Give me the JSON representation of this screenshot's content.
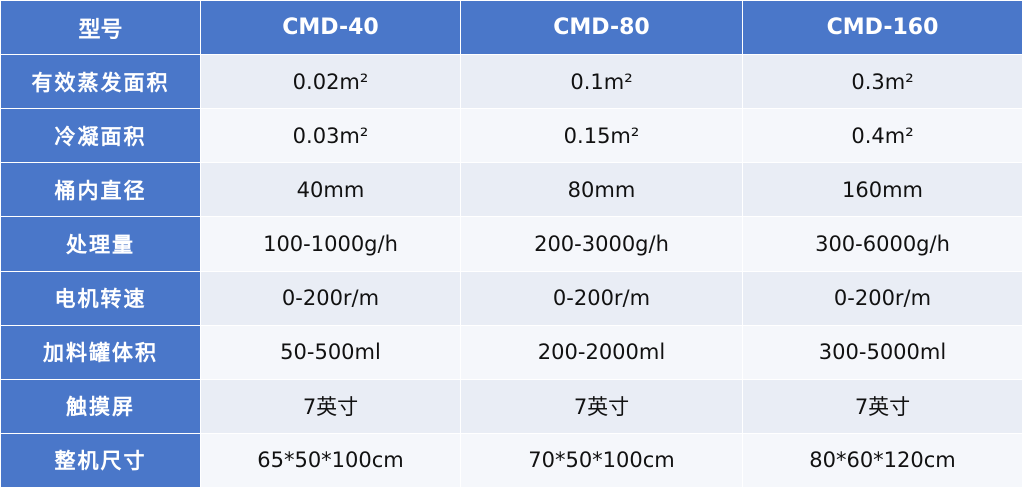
{
  "table": {
    "header": [
      "型号",
      "CMD-40",
      "CMD-80",
      "CMD-160"
    ],
    "rows": [
      [
        "有效蒸发面积",
        "0.02m²",
        "0.1m²",
        "0.3m²"
      ],
      [
        "冷凝面积",
        "0.03m²",
        "0.15m²",
        "0.4m²"
      ],
      [
        "桶内直径",
        "40mm",
        "80mm",
        "160mm"
      ],
      [
        "处理量",
        "100-1000g/h",
        "200-3000g/h",
        "300-6000g/h"
      ],
      [
        "电机转速",
        "0-200r/m",
        "0-200r/m",
        "0-200r/m"
      ],
      [
        "加料罐体积",
        "50-500ml",
        "200-2000ml",
        "300-5000ml"
      ],
      [
        "触摸屏",
        "7英寸",
        "7英寸",
        "7英寸"
      ],
      [
        "整机尺寸",
        "65*50*100cm",
        "70*50*100cm",
        "80*60*120cm"
      ]
    ]
  }
}
